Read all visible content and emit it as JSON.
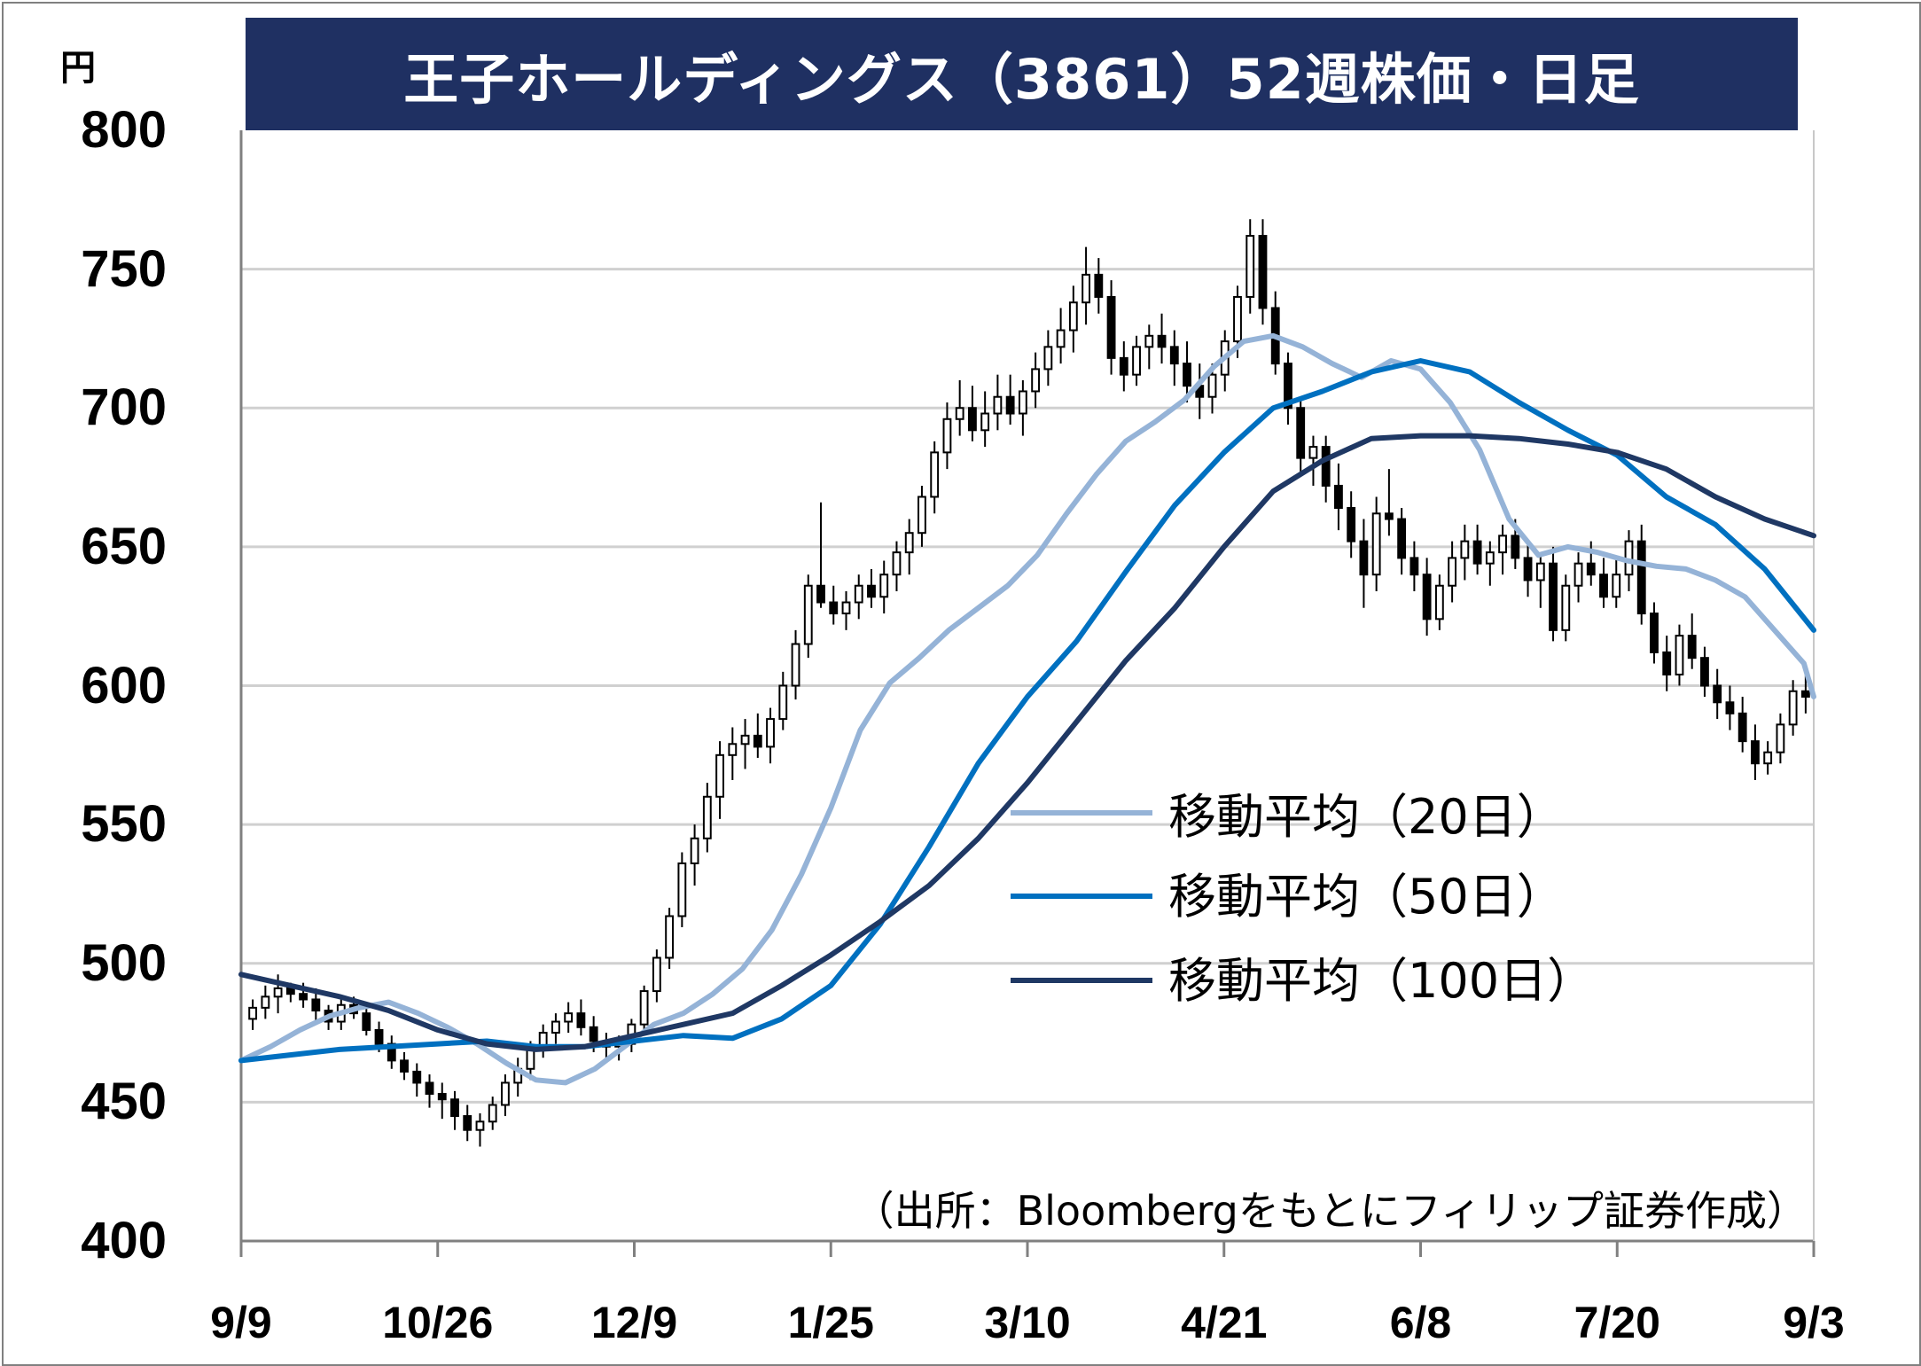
{
  "chart_data": {
    "type": "candlestick",
    "title": "王子ホールディングス（3861）52週株価・日足",
    "unit_label": "円",
    "ylim": [
      400,
      800
    ],
    "y_ticks": [
      "800",
      "750",
      "700",
      "650",
      "600",
      "550",
      "500",
      "450",
      "400"
    ],
    "x_ticks": [
      "9/9",
      "10/26",
      "12/9",
      "1/25",
      "3/10",
      "4/21",
      "6/8",
      "7/20",
      "9/3"
    ],
    "grid": true,
    "legend_position": "center-right",
    "source": "（出所：Bloombergをもとにフィリップ証券作成）",
    "colors": {
      "title_bg": "#1f3062",
      "ma20": "#95b3d7",
      "ma50": "#0070c0",
      "ma100": "#1f3864",
      "candle": "#000000",
      "grid": "#d0d0d0"
    },
    "series": [
      {
        "name": "移動平均（20日）",
        "key": "ma20",
        "points": [
          [
            0,
            465
          ],
          [
            3,
            470
          ],
          [
            6,
            476
          ],
          [
            9,
            481
          ],
          [
            12,
            484
          ],
          [
            15,
            486
          ],
          [
            18,
            482
          ],
          [
            21,
            477
          ],
          [
            24,
            471
          ],
          [
            27,
            464
          ],
          [
            30,
            458
          ],
          [
            33,
            457
          ],
          [
            36,
            462
          ],
          [
            39,
            470
          ],
          [
            42,
            478
          ],
          [
            45,
            482
          ],
          [
            48,
            489
          ],
          [
            51,
            498
          ],
          [
            54,
            512
          ],
          [
            57,
            532
          ],
          [
            60,
            556
          ],
          [
            63,
            584
          ],
          [
            66,
            601
          ],
          [
            69,
            610
          ],
          [
            72,
            620
          ],
          [
            75,
            628
          ],
          [
            78,
            636
          ],
          [
            81,
            647
          ],
          [
            84,
            662
          ],
          [
            87,
            676
          ],
          [
            90,
            688
          ],
          [
            93,
            695
          ],
          [
            96,
            703
          ],
          [
            99,
            715
          ],
          [
            102,
            724
          ],
          [
            105,
            726
          ],
          [
            108,
            722
          ],
          [
            111,
            716
          ],
          [
            114,
            711
          ],
          [
            117,
            717
          ],
          [
            120,
            714
          ],
          [
            123,
            702
          ],
          [
            126,
            685
          ],
          [
            129,
            660
          ],
          [
            132,
            647
          ],
          [
            135,
            650
          ],
          [
            138,
            648
          ],
          [
            141,
            645
          ],
          [
            144,
            643
          ],
          [
            147,
            642
          ],
          [
            150,
            638
          ],
          [
            153,
            632
          ],
          [
            156,
            620
          ],
          [
            159,
            608
          ],
          [
            160,
            596
          ]
        ]
      },
      {
        "name": "移動平均（50日）",
        "key": "ma50",
        "points": [
          [
            0,
            465
          ],
          [
            5,
            467
          ],
          [
            10,
            469
          ],
          [
            15,
            470
          ],
          [
            20,
            471
          ],
          [
            25,
            472
          ],
          [
            30,
            470
          ],
          [
            35,
            470
          ],
          [
            40,
            472
          ],
          [
            45,
            474
          ],
          [
            50,
            473
          ],
          [
            55,
            480
          ],
          [
            60,
            492
          ],
          [
            65,
            514
          ],
          [
            70,
            542
          ],
          [
            75,
            572
          ],
          [
            80,
            596
          ],
          [
            85,
            616
          ],
          [
            90,
            641
          ],
          [
            95,
            665
          ],
          [
            100,
            684
          ],
          [
            105,
            700
          ],
          [
            110,
            706
          ],
          [
            115,
            713
          ],
          [
            120,
            717
          ],
          [
            125,
            713
          ],
          [
            130,
            702
          ],
          [
            135,
            692
          ],
          [
            140,
            683
          ],
          [
            145,
            668
          ],
          [
            150,
            658
          ],
          [
            155,
            642
          ],
          [
            160,
            620
          ]
        ]
      },
      {
        "name": "移動平均（100日）",
        "key": "ma100",
        "points": [
          [
            0,
            496
          ],
          [
            5,
            492
          ],
          [
            10,
            488
          ],
          [
            15,
            483
          ],
          [
            20,
            476
          ],
          [
            25,
            471
          ],
          [
            30,
            469
          ],
          [
            35,
            470
          ],
          [
            40,
            474
          ],
          [
            45,
            478
          ],
          [
            50,
            482
          ],
          [
            55,
            492
          ],
          [
            60,
            503
          ],
          [
            65,
            515
          ],
          [
            70,
            528
          ],
          [
            75,
            545
          ],
          [
            80,
            565
          ],
          [
            85,
            587
          ],
          [
            90,
            609
          ],
          [
            95,
            628
          ],
          [
            100,
            650
          ],
          [
            105,
            670
          ],
          [
            110,
            681
          ],
          [
            115,
            689
          ],
          [
            120,
            690
          ],
          [
            125,
            690
          ],
          [
            130,
            689
          ],
          [
            135,
            687
          ],
          [
            140,
            684
          ],
          [
            145,
            678
          ],
          [
            150,
            668
          ],
          [
            155,
            660
          ],
          [
            160,
            654
          ]
        ]
      }
    ],
    "candles": [
      [
        480,
        487,
        476,
        484
      ],
      [
        484,
        492,
        480,
        488
      ],
      [
        488,
        496,
        482,
        491
      ],
      [
        491,
        493,
        486,
        489
      ],
      [
        489,
        493,
        484,
        487
      ],
      [
        487,
        491,
        478,
        483
      ],
      [
        483,
        485,
        476,
        479
      ],
      [
        479,
        487,
        476,
        485
      ],
      [
        485,
        488,
        480,
        482
      ],
      [
        482,
        485,
        474,
        476
      ],
      [
        476,
        479,
        468,
        471
      ],
      [
        471,
        474,
        462,
        465
      ],
      [
        465,
        468,
        458,
        461
      ],
      [
        461,
        464,
        452,
        457
      ],
      [
        457,
        460,
        448,
        453
      ],
      [
        453,
        457,
        444,
        451
      ],
      [
        451,
        454,
        440,
        445
      ],
      [
        445,
        449,
        436,
        440
      ],
      [
        440,
        446,
        434,
        443
      ],
      [
        443,
        452,
        440,
        449
      ],
      [
        449,
        460,
        445,
        457
      ],
      [
        457,
        466,
        452,
        462
      ],
      [
        462,
        472,
        458,
        469
      ],
      [
        469,
        478,
        466,
        475
      ],
      [
        475,
        482,
        471,
        479
      ],
      [
        479,
        486,
        475,
        482
      ],
      [
        482,
        487,
        474,
        477
      ],
      [
        477,
        481,
        468,
        472
      ],
      [
        472,
        475,
        466,
        470
      ],
      [
        470,
        474,
        465,
        471
      ],
      [
        471,
        480,
        468,
        478
      ],
      [
        478,
        492,
        474,
        490
      ],
      [
        490,
        505,
        486,
        502
      ],
      [
        502,
        520,
        498,
        517
      ],
      [
        517,
        540,
        513,
        536
      ],
      [
        536,
        550,
        528,
        545
      ],
      [
        545,
        565,
        540,
        560
      ],
      [
        560,
        580,
        552,
        575
      ],
      [
        575,
        585,
        566,
        579
      ],
      [
        579,
        588,
        570,
        582
      ],
      [
        582,
        590,
        574,
        578
      ],
      [
        578,
        592,
        572,
        588
      ],
      [
        588,
        605,
        584,
        600
      ],
      [
        600,
        620,
        595,
        615
      ],
      [
        615,
        640,
        610,
        636
      ],
      [
        636,
        666,
        628,
        630
      ],
      [
        630,
        636,
        622,
        626
      ],
      [
        626,
        634,
        620,
        630
      ],
      [
        630,
        640,
        624,
        636
      ],
      [
        636,
        642,
        628,
        632
      ],
      [
        632,
        645,
        626,
        640
      ],
      [
        640,
        652,
        634,
        648
      ],
      [
        648,
        660,
        640,
        655
      ],
      [
        655,
        672,
        650,
        668
      ],
      [
        668,
        688,
        662,
        684
      ],
      [
        684,
        702,
        678,
        696
      ],
      [
        696,
        710,
        690,
        700
      ],
      [
        700,
        708,
        688,
        692
      ],
      [
        692,
        706,
        686,
        698
      ],
      [
        698,
        712,
        692,
        704
      ],
      [
        704,
        712,
        694,
        698
      ],
      [
        698,
        710,
        690,
        706
      ],
      [
        706,
        720,
        700,
        714
      ],
      [
        714,
        728,
        708,
        722
      ],
      [
        722,
        736,
        716,
        728
      ],
      [
        728,
        744,
        720,
        738
      ],
      [
        738,
        758,
        730,
        748
      ],
      [
        748,
        754,
        734,
        740
      ],
      [
        740,
        746,
        712,
        718
      ],
      [
        718,
        724,
        706,
        712
      ],
      [
        712,
        726,
        708,
        722
      ],
      [
        722,
        730,
        714,
        726
      ],
      [
        726,
        734,
        716,
        722
      ],
      [
        722,
        728,
        708,
        716
      ],
      [
        716,
        724,
        702,
        708
      ],
      [
        708,
        716,
        696,
        704
      ],
      [
        704,
        716,
        698,
        712
      ],
      [
        712,
        728,
        706,
        724
      ],
      [
        724,
        744,
        718,
        740
      ],
      [
        740,
        768,
        734,
        762
      ],
      [
        762,
        768,
        730,
        736
      ],
      [
        736,
        742,
        712,
        716
      ],
      [
        716,
        720,
        694,
        700
      ],
      [
        700,
        704,
        676,
        682
      ],
      [
        682,
        690,
        672,
        686
      ],
      [
        686,
        690,
        666,
        672
      ],
      [
        672,
        680,
        656,
        664
      ],
      [
        664,
        670,
        646,
        652
      ],
      [
        652,
        660,
        628,
        640
      ],
      [
        640,
        668,
        634,
        662
      ],
      [
        662,
        678,
        654,
        660
      ],
      [
        660,
        664,
        640,
        646
      ],
      [
        646,
        652,
        634,
        640
      ],
      [
        640,
        646,
        618,
        624
      ],
      [
        624,
        640,
        620,
        636
      ],
      [
        636,
        652,
        630,
        646
      ],
      [
        646,
        658,
        638,
        652
      ],
      [
        652,
        658,
        640,
        644
      ],
      [
        644,
        652,
        636,
        648
      ],
      [
        648,
        658,
        640,
        654
      ],
      [
        654,
        660,
        642,
        646
      ],
      [
        646,
        652,
        632,
        638
      ],
      [
        638,
        648,
        628,
        644
      ],
      [
        644,
        650,
        616,
        620
      ],
      [
        620,
        640,
        616,
        636
      ],
      [
        636,
        648,
        630,
        644
      ],
      [
        644,
        652,
        636,
        640
      ],
      [
        640,
        646,
        628,
        632
      ],
      [
        632,
        646,
        628,
        640
      ],
      [
        640,
        656,
        634,
        652
      ],
      [
        652,
        658,
        622,
        626
      ],
      [
        626,
        630,
        608,
        612
      ],
      [
        612,
        618,
        598,
        604
      ],
      [
        604,
        622,
        600,
        618
      ],
      [
        618,
        626,
        606,
        610
      ],
      [
        610,
        614,
        596,
        600
      ],
      [
        600,
        606,
        588,
        594
      ],
      [
        594,
        600,
        584,
        590
      ],
      [
        590,
        596,
        576,
        580
      ],
      [
        580,
        586,
        566,
        572
      ],
      [
        572,
        580,
        568,
        576
      ],
      [
        576,
        590,
        572,
        586
      ],
      [
        586,
        602,
        582,
        598
      ],
      [
        598,
        604,
        590,
        596
      ]
    ]
  },
  "legend": {
    "ma20": "移動平均（20日）",
    "ma50": "移動平均（50日）",
    "ma100": "移動平均（100日）"
  }
}
